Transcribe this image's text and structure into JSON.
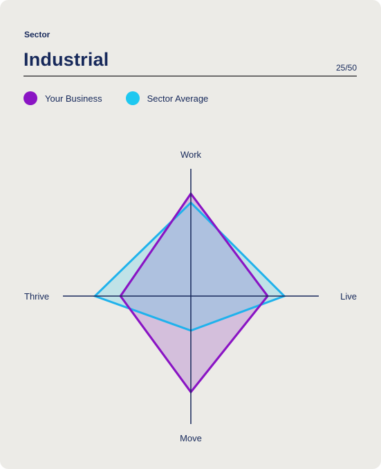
{
  "header": {
    "section_label": "Sector",
    "title": "Industrial",
    "score": "25/50"
  },
  "legend": [
    {
      "label": "Your Business",
      "color": "#8a14c4"
    },
    {
      "label": "Sector Average",
      "color": "#1ec8f0"
    }
  ],
  "chart_data": {
    "type": "radar",
    "axes": [
      "Work",
      "Live",
      "Move",
      "Thrive"
    ],
    "scale_max": 10,
    "series": [
      {
        "name": "Your Business",
        "values": {
          "Work": 8,
          "Live": 6,
          "Move": 7.5,
          "Thrive": 5.5
        },
        "stroke": "#8a14c4",
        "fill": "rgba(170, 110, 200, 0.35)"
      },
      {
        "name": "Sector Average",
        "values": {
          "Work": 7.3,
          "Live": 7.3,
          "Move": 2.7,
          "Thrive": 7.5
        },
        "stroke": "#1fb2ec",
        "fill": "rgba(60, 200, 230, 0.25)"
      }
    ]
  }
}
